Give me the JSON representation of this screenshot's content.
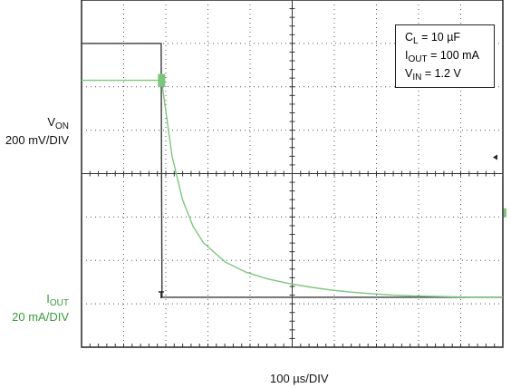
{
  "chart_data": {
    "type": "line",
    "title": "",
    "xlabel": "100 µs/DIV",
    "x_unit": "µs",
    "x_per_div": 100,
    "x_divisions": 10,
    "y_divisions": 8,
    "xlim": [
      0,
      1000
    ],
    "grid": true,
    "channels": [
      {
        "name_main": "V",
        "name_sub": "ON",
        "scale": "200 mV/DIV",
        "color": "#3a3a3a"
      },
      {
        "name_main": "I",
        "name_sub": "OUT",
        "scale": "20 mA/DIV",
        "color": "#7cc67c"
      }
    ],
    "series": [
      {
        "name": "VON",
        "units": "divisions",
        "x": [
          0,
          189,
          190,
          191,
          200,
          300,
          400,
          500,
          600,
          700,
          800,
          900,
          1000
        ],
        "y": [
          7.0,
          7.0,
          4.0,
          1.15,
          1.15,
          1.15,
          1.15,
          1.15,
          1.15,
          1.15,
          1.15,
          1.15,
          1.15
        ]
      },
      {
        "name": "IOUT",
        "units": "divisions",
        "x": [
          0,
          190,
          215,
          240,
          265,
          290,
          340,
          390,
          440,
          490,
          540,
          590,
          640,
          690,
          740,
          790,
          840,
          890,
          940,
          1000
        ],
        "y": [
          6.15,
          6.15,
          4.39,
          3.39,
          2.78,
          2.4,
          1.97,
          1.73,
          1.58,
          1.47,
          1.39,
          1.32,
          1.27,
          1.23,
          1.2,
          1.18,
          1.17,
          1.16,
          1.15,
          1.15
        ]
      }
    ],
    "annotations": {
      "legend_lines": [
        {
          "main": "C",
          "sub": "L",
          "rest": " = 10 µF"
        },
        {
          "main": "I",
          "sub": "OUT",
          "rest": " = 100 mA"
        },
        {
          "main": "V",
          "sub": "IN",
          "rest": " = 1.2 V"
        }
      ]
    }
  }
}
